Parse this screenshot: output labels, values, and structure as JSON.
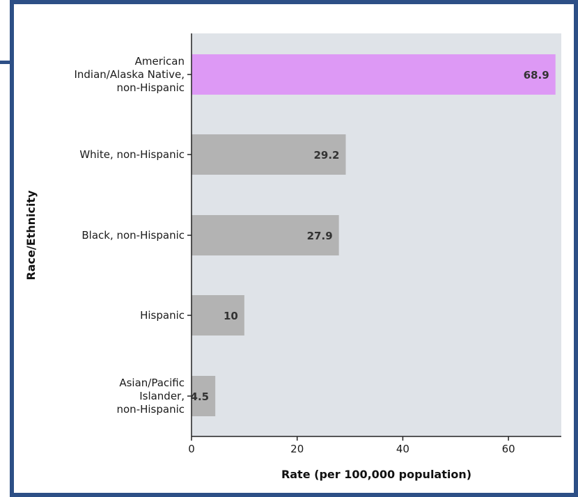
{
  "theme": {
    "frame_color": "#2d4f86",
    "plot_bg": "#dfe3e8",
    "highlight_bar": "#dd99f5",
    "default_bar": "#b3b3b3",
    "axis_color": "#222222"
  },
  "chart_data": {
    "type": "bar",
    "orientation": "horizontal",
    "categories": [
      [
        "American",
        "Indian/Alaska Native,",
        "non-Hispanic"
      ],
      [
        "White, non-Hispanic"
      ],
      [
        "Black, non-Hispanic"
      ],
      [
        "Hispanic"
      ],
      [
        "Asian/Pacific",
        "Islander,",
        "non-Hispanic"
      ]
    ],
    "values": [
      68.9,
      29.2,
      27.9,
      10,
      4.5
    ],
    "value_labels": [
      "68.9",
      "29.2",
      "27.9",
      "10",
      "4.5"
    ],
    "highlight_index": 0,
    "xlabel": "Rate (per 100,000 population)",
    "ylabel": "Race/Ethnicity",
    "xlim": [
      0,
      70
    ],
    "xticks": [
      0,
      20,
      40,
      60
    ],
    "grid": false,
    "legend": "none"
  }
}
